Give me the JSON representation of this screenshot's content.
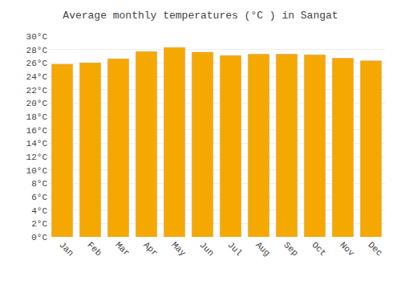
{
  "chart_data": {
    "type": "bar",
    "title": "Average monthly temperatures (°C ) in Sangat",
    "categories": [
      "Jan",
      "Feb",
      "Mar",
      "Apr",
      "May",
      "Jun",
      "Jul",
      "Aug",
      "Sep",
      "Oct",
      "Nov",
      "Dec"
    ],
    "values": [
      25.8,
      26.0,
      26.6,
      27.7,
      28.3,
      27.6,
      27.1,
      27.3,
      27.3,
      27.2,
      26.7,
      26.3
    ],
    "color": "#F5A800",
    "ylim": [
      0,
      30
    ],
    "yticks": [
      {
        "value": 0,
        "label": "0°C"
      },
      {
        "value": 2,
        "label": "2°C"
      },
      {
        "value": 4,
        "label": "4°C"
      },
      {
        "value": 6,
        "label": "6°C"
      },
      {
        "value": 8,
        "label": "8°C"
      },
      {
        "value": 10,
        "label": "10°C"
      },
      {
        "value": 12,
        "label": "12°C"
      },
      {
        "value": 14,
        "label": "14°C"
      },
      {
        "value": 16,
        "label": "16°C"
      },
      {
        "value": 18,
        "label": "18°C"
      },
      {
        "value": 20,
        "label": "20°C"
      },
      {
        "value": 22,
        "label": "22°C"
      },
      {
        "value": 24,
        "label": "24°C"
      },
      {
        "value": 26,
        "label": "26°C"
      },
      {
        "value": 28,
        "label": "28°C"
      },
      {
        "value": 30,
        "label": "30°C"
      }
    ],
    "grid": true
  }
}
